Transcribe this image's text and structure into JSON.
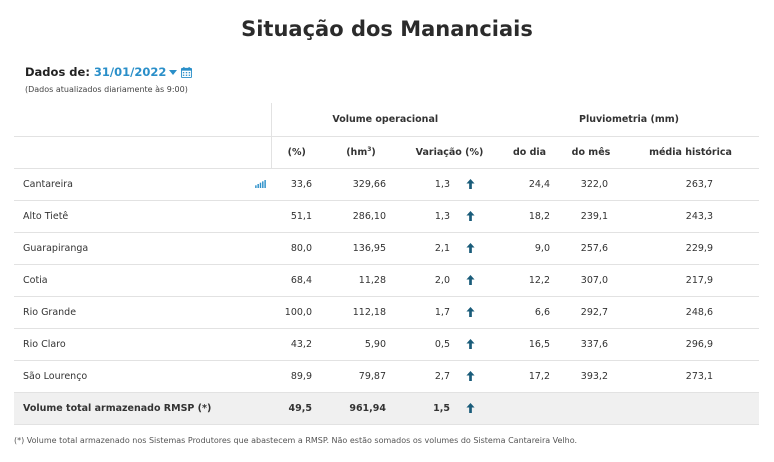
{
  "page": {
    "title": "Situação dos Mananciais"
  },
  "date": {
    "label": "Dados de:",
    "value": "31/01/2022",
    "note": "(Dados atualizados diariamente às 9:00)"
  },
  "table": {
    "group_headers": {
      "volume": "Volume operacional",
      "pluvio": "Pluviometria (mm)"
    },
    "columns": {
      "pct": "(%)",
      "hm3_base": "(hm",
      "hm3_sup": "3",
      "hm3_close": ")",
      "variacao": "Variação (%)",
      "do_dia": "do dia",
      "do_mes": "do mês",
      "media": "média histórica"
    },
    "rows": [
      {
        "name": "Cantareira",
        "pct": "33,6",
        "hm3": "329,66",
        "var": "1,3",
        "trend": "up",
        "dia": "24,4",
        "mes": "322,0",
        "media": "263,7",
        "has_chart": true
      },
      {
        "name": "Alto Tietê",
        "pct": "51,1",
        "hm3": "286,10",
        "var": "1,3",
        "trend": "up",
        "dia": "18,2",
        "mes": "239,1",
        "media": "243,3"
      },
      {
        "name": "Guarapiranga",
        "pct": "80,0",
        "hm3": "136,95",
        "var": "2,1",
        "trend": "up",
        "dia": "9,0",
        "mes": "257,6",
        "media": "229,9"
      },
      {
        "name": "Cotia",
        "pct": "68,4",
        "hm3": "11,28",
        "var": "2,0",
        "trend": "up",
        "dia": "12,2",
        "mes": "307,0",
        "media": "217,9"
      },
      {
        "name": "Rio Grande",
        "pct": "100,0",
        "hm3": "112,18",
        "var": "1,7",
        "trend": "up",
        "dia": "6,6",
        "mes": "292,7",
        "media": "248,6"
      },
      {
        "name": "Rio Claro",
        "pct": "43,2",
        "hm3": "5,90",
        "var": "0,5",
        "trend": "up",
        "dia": "16,5",
        "mes": "337,6",
        "media": "296,9"
      },
      {
        "name": "São Lourenço",
        "pct": "89,9",
        "hm3": "79,87",
        "var": "2,7",
        "trend": "up",
        "dia": "17,2",
        "mes": "393,2",
        "media": "273,1"
      }
    ],
    "total": {
      "name": "Volume total armazenado RMSP (*)",
      "pct": "49,5",
      "hm3": "961,94",
      "var": "1,5",
      "trend": "up"
    }
  },
  "footnote": "(*) Volume total armazenado nos Sistemas Produtores que abastecem a RMSP. Não estão somados os volumes do Sistema Cantareira Velho.",
  "colors": {
    "accent": "#2a8fc9",
    "arrow": "#1a5c7a",
    "total_bg": "#f0f0f0",
    "border": "#e2e2e2"
  },
  "icons": {
    "calendar": "calendar-icon",
    "chart": "bar-chart-icon",
    "trend": "arrow-up-icon"
  }
}
